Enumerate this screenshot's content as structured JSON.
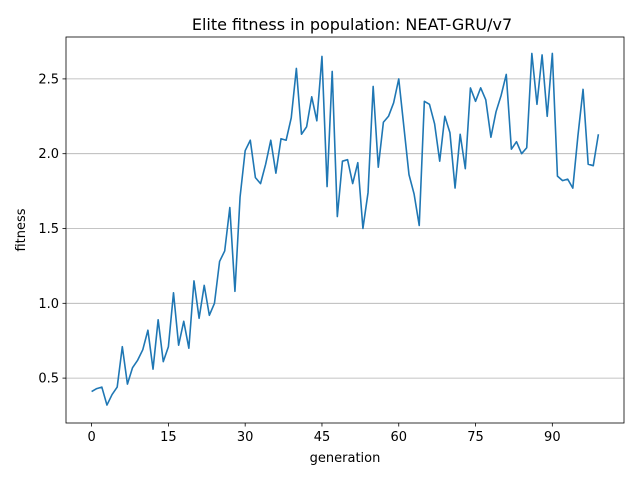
{
  "chart_data": {
    "type": "line",
    "title": "Elite fitness in population: NEAT-GRU/v7",
    "xlabel": "generation",
    "ylabel": "fitness",
    "xlim": [
      -5,
      104
    ],
    "ylim": [
      0.2,
      2.78
    ],
    "xticks": [
      0,
      15,
      30,
      45,
      60,
      75,
      90
    ],
    "yticks": [
      0.5,
      1.0,
      1.5,
      2.0,
      2.5
    ],
    "ytick_labels": [
      "0.5",
      "1.0",
      "1.5",
      "2.0",
      "2.5"
    ],
    "grid": "y-only",
    "line_color": "#1f77b4",
    "series": [
      {
        "values": [
          0.41,
          0.43,
          0.44,
          0.32,
          0.39,
          0.44,
          0.71,
          0.46,
          0.57,
          0.62,
          0.69,
          0.82,
          0.56,
          0.89,
          0.61,
          0.71,
          1.07,
          0.72,
          0.88,
          0.7,
          1.15,
          0.9,
          1.12,
          0.92,
          1.0,
          1.28,
          1.35,
          1.64,
          1.08,
          1.71,
          2.02,
          2.09,
          1.84,
          1.8,
          1.93,
          2.09,
          1.87,
          2.1,
          2.09,
          2.24,
          2.57,
          2.13,
          2.18,
          2.38,
          2.22,
          2.65,
          1.78,
          2.55,
          1.58,
          1.95,
          1.96,
          1.8,
          1.94,
          1.5,
          1.74,
          2.45,
          1.91,
          2.21,
          2.25,
          2.34,
          2.5,
          2.18,
          1.86,
          1.73,
          1.52,
          2.35,
          2.33,
          2.2,
          1.95,
          2.25,
          2.14,
          1.77,
          2.13,
          1.9,
          2.44,
          2.35,
          2.44,
          2.36,
          2.11,
          2.28,
          2.39,
          2.53,
          2.03,
          2.08,
          2.0,
          2.04,
          2.67,
          2.33,
          2.66,
          2.25,
          2.67,
          1.85,
          1.82,
          1.83,
          1.77,
          2.12,
          2.43,
          1.93,
          1.92,
          2.13
        ]
      }
    ]
  }
}
